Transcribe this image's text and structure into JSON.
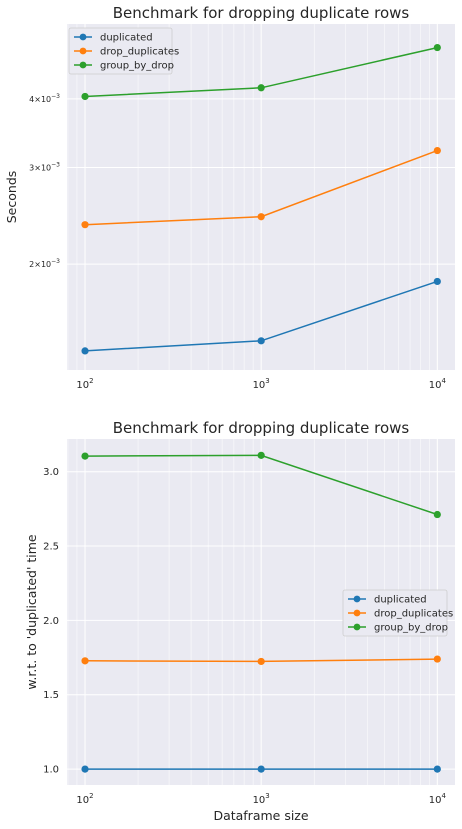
{
  "chart_data": [
    {
      "type": "line",
      "title": "Benchmark for dropping duplicate rows",
      "xlabel": "",
      "ylabel": "Seconds",
      "xscale": "log",
      "yscale": "log",
      "x": [
        100,
        1000,
        10000
      ],
      "xticks": [
        {
          "value": 100,
          "base": "10",
          "exp": "2"
        },
        {
          "value": 1000,
          "base": "10",
          "exp": "3"
        },
        {
          "value": 10000,
          "base": "10",
          "exp": "4"
        }
      ],
      "yticks": [
        {
          "value": 0.002,
          "mant": "2",
          "times": "×",
          "base": "10",
          "exp": "−3"
        },
        {
          "value": 0.003,
          "mant": "3",
          "times": "×",
          "base": "10",
          "exp": "−3"
        },
        {
          "value": 0.004,
          "mant": "4",
          "times": "×",
          "base": "10",
          "exp": "−3"
        }
      ],
      "xlim": [
        79,
        12600
      ],
      "ylim": [
        0.001283,
        0.005475
      ],
      "grid": true,
      "legend_position": "upper left",
      "series": [
        {
          "name": "duplicated",
          "color": "#1f77b4",
          "values": [
            0.00139,
            0.00145,
            0.00186
          ]
        },
        {
          "name": "drop_duplicates",
          "color": "#ff7f0e",
          "values": [
            0.00236,
            0.00244,
            0.00322
          ]
        },
        {
          "name": "group_by_drop",
          "color": "#2ca02c",
          "values": [
            0.00404,
            0.00419,
            0.00496
          ]
        }
      ]
    },
    {
      "type": "line",
      "title": "Benchmark for dropping duplicate rows",
      "xlabel": "Dataframe size",
      "ylabel": "w.r.t. to 'duplicated' time",
      "xscale": "log",
      "yscale": "linear",
      "x": [
        100,
        1000,
        10000
      ],
      "xticks": [
        {
          "value": 100,
          "base": "10",
          "exp": "2"
        },
        {
          "value": 1000,
          "base": "10",
          "exp": "3"
        },
        {
          "value": 10000,
          "base": "10",
          "exp": "4"
        }
      ],
      "yticks": [
        {
          "value": 1.0,
          "label": "1.0"
        },
        {
          "value": 1.5,
          "label": "1.5"
        },
        {
          "value": 2.0,
          "label": "2.0"
        },
        {
          "value": 2.5,
          "label": "2.5"
        },
        {
          "value": 3.0,
          "label": "3.0"
        }
      ],
      "xlim": [
        79,
        12600
      ],
      "ylim": [
        0.893,
        3.22
      ],
      "grid": true,
      "legend_position": "center right",
      "series": [
        {
          "name": "duplicated",
          "color": "#1f77b4",
          "values": [
            1.0,
            1.0,
            1.0
          ]
        },
        {
          "name": "drop_duplicates",
          "color": "#ff7f0e",
          "values": [
            1.728,
            1.724,
            1.74
          ]
        },
        {
          "name": "group_by_drop",
          "color": "#2ca02c",
          "values": [
            3.105,
            3.11,
            2.712
          ]
        }
      ]
    }
  ]
}
